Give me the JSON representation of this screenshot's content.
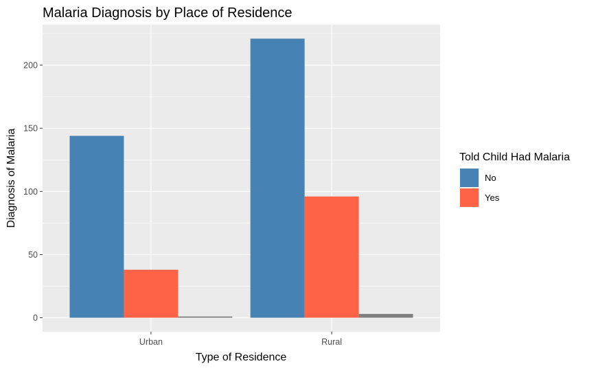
{
  "chart_data": {
    "type": "bar",
    "title": "Malaria Diagnosis by Place of Residence",
    "xlabel": "Type of Residence",
    "ylabel": "Diagnosis of Malaria",
    "categories": [
      "Urban",
      "Rural"
    ],
    "series": [
      {
        "name": "No",
        "color": "#4682B4",
        "values": [
          144,
          221
        ]
      },
      {
        "name": "Yes",
        "color": "#FF6347",
        "values": [
          38,
          96
        ]
      },
      {
        "name": "",
        "color": "#7F7F7F",
        "values": [
          1,
          3
        ]
      }
    ],
    "ylim": [
      -11.05,
      232.05
    ],
    "yticks": [
      0,
      50,
      100,
      150,
      200
    ],
    "grid": true,
    "panel_background": "#EBEBEB",
    "legend": {
      "title": "Told Child Had Malaria",
      "placement": "right",
      "entries": [
        "No",
        "Yes"
      ]
    }
  }
}
